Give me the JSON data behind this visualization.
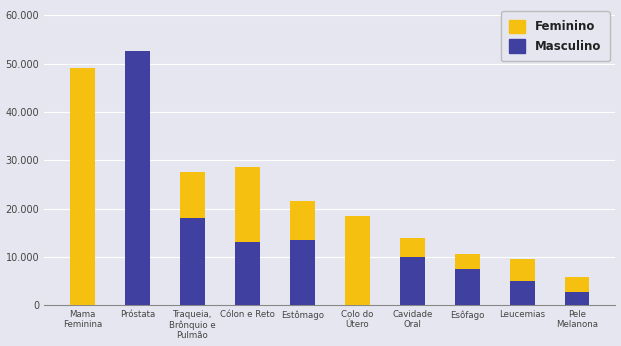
{
  "categories": [
    "Mama\nFeminina",
    "Próstata",
    "Traqueia,\nBrônquio e\nPulmão",
    "Cólon e Reto",
    "Estômago",
    "Colo do\nÚtero",
    "Cavidade\nOral",
    "Esôfago",
    "Leucemias",
    "Pele\nMelanona"
  ],
  "feminino": [
    49000,
    0,
    9500,
    15500,
    8000,
    18500,
    4000,
    3000,
    4500,
    3000
  ],
  "masculino": [
    0,
    52500,
    18000,
    13000,
    13500,
    0,
    10000,
    7500,
    5000,
    2800
  ],
  "color_feminino": "#F5C010",
  "color_masculino": "#4040A0",
  "background_color": "#E6E6F0",
  "ylim": [
    0,
    62000
  ],
  "yticks": [
    0,
    10000,
    20000,
    30000,
    40000,
    50000,
    60000
  ],
  "ytick_labels": [
    "0",
    "10.000",
    "20.000",
    "30.000",
    "40.000",
    "50.000",
    "60.000"
  ],
  "legend_feminino": "Feminino",
  "legend_masculino": "Masculino",
  "bar_width": 0.45
}
